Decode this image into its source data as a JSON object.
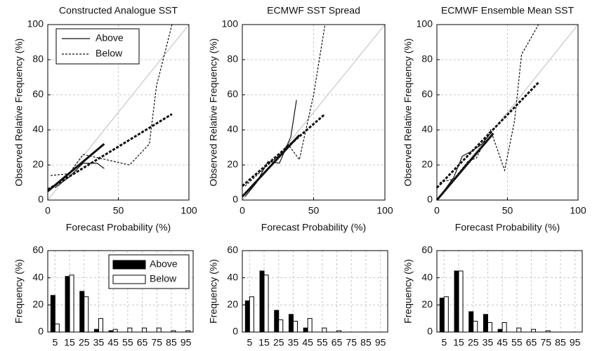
{
  "chart_data": [
    {
      "type": "line",
      "title": "Constructed Analogue SST",
      "x_label": "Forecast Probability (%)",
      "y_label": "Observed Relative Frequency (%)",
      "xlim": [
        0,
        100
      ],
      "ylim": [
        0,
        100
      ],
      "xticks": [
        0,
        50,
        100
      ],
      "yticks": [
        0,
        20,
        40,
        60,
        80,
        100
      ],
      "grid": true,
      "legend": "upper left",
      "series": [
        {
          "name": "Above",
          "color": "#111111",
          "style": "solid",
          "x": [
            5,
            15,
            25,
            35,
            40
          ],
          "values": [
            7,
            13,
            21,
            21,
            18
          ],
          "fit_x": [
            0,
            40
          ],
          "fit_y": [
            5,
            32
          ]
        },
        {
          "name": "Below",
          "color": "#111111",
          "style": "dotted",
          "x": [
            2,
            15,
            25,
            58,
            72,
            77,
            88
          ],
          "values": [
            14,
            15,
            26,
            20,
            32,
            65,
            100
          ],
          "fit_x": [
            0,
            88
          ],
          "fit_y": [
            6,
            49
          ]
        }
      ]
    },
    {
      "type": "line",
      "title": "ECMWF SST Spread",
      "x_label": "Forecast Probability (%)",
      "y_label": "Observed Relative Frequency (%)",
      "xlim": [
        0,
        100
      ],
      "ylim": [
        0,
        100
      ],
      "xticks": [
        0,
        50,
        100
      ],
      "yticks": [
        0,
        20,
        40,
        60,
        80,
        100
      ],
      "grid": true,
      "series": [
        {
          "color": "#111111",
          "style": "solid",
          "x": [
            2,
            10,
            18,
            26,
            34,
            38
          ],
          "values": [
            2,
            10,
            22,
            21,
            36,
            57
          ],
          "fit_x": [
            0,
            40
          ],
          "fit_y": [
            2,
            37
          ]
        },
        {
          "color": "#111111",
          "style": "dotted",
          "x": [
            2,
            18,
            28,
            32,
            40,
            50,
            58
          ],
          "values": [
            8,
            20,
            27,
            32,
            23,
            60,
            100
          ],
          "fit_x": [
            0,
            58
          ],
          "fit_y": [
            8,
            49
          ]
        }
      ]
    },
    {
      "type": "line",
      "title": "ECMWF Ensemble Mean SST",
      "x_label": "Forecast Probability (%)",
      "y_label": "Observed Relative Frequency (%)",
      "xlim": [
        0,
        100
      ],
      "ylim": [
        0,
        100
      ],
      "xticks": [
        0,
        50,
        100
      ],
      "yticks": [
        0,
        20,
        40,
        60,
        80,
        100
      ],
      "grid": true,
      "series": [
        {
          "color": "#111111",
          "style": "solid",
          "x": [
            3,
            12,
            18,
            25,
            32,
            38
          ],
          "values": [
            3,
            13,
            25,
            28,
            32,
            38
          ],
          "fit_x": [
            0,
            40
          ],
          "fit_y": [
            0,
            38
          ]
        },
        {
          "color": "#111111",
          "style": "dotted",
          "x": [
            2,
            12,
            22,
            28,
            38,
            48,
            55,
            60,
            65,
            72
          ],
          "values": [
            10,
            12,
            22,
            24,
            40,
            17,
            45,
            83,
            90,
            100
          ],
          "fit_x": [
            0,
            72
          ],
          "fit_y": [
            7,
            67
          ]
        }
      ]
    },
    {
      "type": "bar",
      "y_label": "Frequency (%)",
      "categories": [
        "5",
        "15",
        "25",
        "35",
        "45",
        "55",
        "65",
        "75",
        "85",
        "95"
      ],
      "ylim": [
        0,
        60
      ],
      "yticks": [
        0,
        20,
        40,
        60
      ],
      "grid": true,
      "legend": "upper right",
      "series": [
        {
          "name": "Above",
          "color": "#000000",
          "values": [
            27,
            41,
            30,
            2,
            1,
            0,
            0,
            0,
            0,
            0
          ]
        },
        {
          "name": "Below",
          "color": "#ffffff",
          "values": [
            6,
            42,
            26,
            10,
            2,
            3,
            3,
            3,
            1,
            1
          ]
        }
      ]
    },
    {
      "type": "bar",
      "y_label": "Frequency (%)",
      "categories": [
        "5",
        "15",
        "25",
        "35",
        "45",
        "55",
        "65",
        "75",
        "85",
        "95"
      ],
      "ylim": [
        0,
        60
      ],
      "yticks": [
        0,
        20,
        40,
        60
      ],
      "grid": true,
      "series": [
        {
          "color": "#000000",
          "values": [
            23,
            45,
            16,
            13,
            3,
            0,
            0,
            0,
            0,
            0
          ]
        },
        {
          "color": "#ffffff",
          "values": [
            26,
            42,
            9,
            8,
            10,
            3,
            1,
            0,
            0,
            0
          ]
        }
      ]
    },
    {
      "type": "bar",
      "y_label": "Frequency (%)",
      "categories": [
        "5",
        "15",
        "25",
        "35",
        "45",
        "55",
        "65",
        "75",
        "85",
        "95"
      ],
      "ylim": [
        0,
        60
      ],
      "yticks": [
        0,
        20,
        40,
        60
      ],
      "grid": true,
      "series": [
        {
          "color": "#000000",
          "values": [
            25,
            45,
            15,
            13,
            2,
            0,
            0,
            0,
            0,
            0
          ]
        },
        {
          "color": "#ffffff",
          "values": [
            26,
            45,
            8,
            7,
            7,
            3,
            2,
            1,
            0,
            0
          ]
        }
      ]
    }
  ]
}
